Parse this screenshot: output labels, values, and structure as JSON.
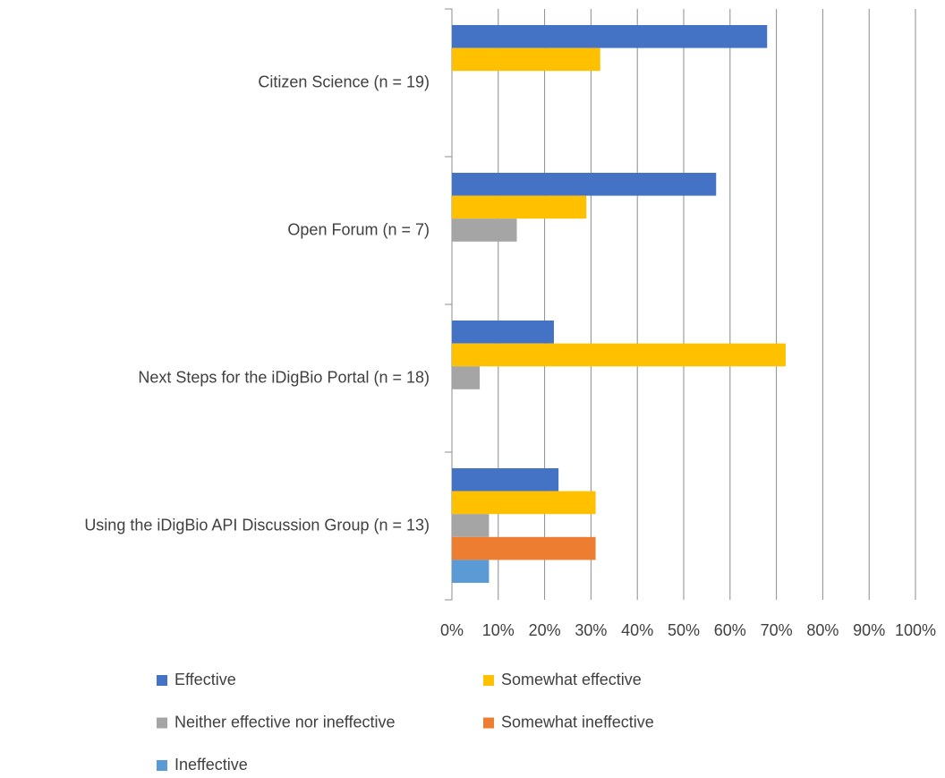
{
  "chart_data": {
    "type": "hbar",
    "categories": [
      "Citizen Science (n = 19)",
      "Open Forum (n = 7)",
      "Next Steps for the iDigBio Portal (n = 18)",
      "Using the iDigBio API Discussion Group (n = 13)"
    ],
    "series": [
      {
        "name": "Effective",
        "color": "#4472c4",
        "values": [
          68,
          57,
          22,
          23
        ]
      },
      {
        "name": "Somewhat effective",
        "color": "#ffc000",
        "values": [
          32,
          29,
          72,
          31
        ]
      },
      {
        "name": "Neither effective nor ineffective",
        "color": "#a5a5a5",
        "values": [
          0,
          14,
          6,
          8
        ]
      },
      {
        "name": "Somewhat ineffective",
        "color": "#ed7d31",
        "values": [
          0,
          0,
          0,
          31
        ]
      },
      {
        "name": "Ineffective",
        "color": "#5b9bd5",
        "values": [
          0,
          0,
          0,
          8
        ]
      }
    ],
    "xlim": [
      0,
      100
    ],
    "xticks": [
      {
        "value": 0,
        "label": "0%"
      },
      {
        "value": 10,
        "label": "10%"
      },
      {
        "value": 20,
        "label": "20%"
      },
      {
        "value": 30,
        "label": "30%"
      },
      {
        "value": 40,
        "label": "40%"
      },
      {
        "value": 50,
        "label": "50%"
      },
      {
        "value": 60,
        "label": "60%"
      },
      {
        "value": 70,
        "label": "70%"
      },
      {
        "value": 80,
        "label": "80%"
      },
      {
        "value": 90,
        "label": "90%"
      },
      {
        "value": 100,
        "label": "100%"
      }
    ],
    "grid": true,
    "legend": "bottom"
  }
}
